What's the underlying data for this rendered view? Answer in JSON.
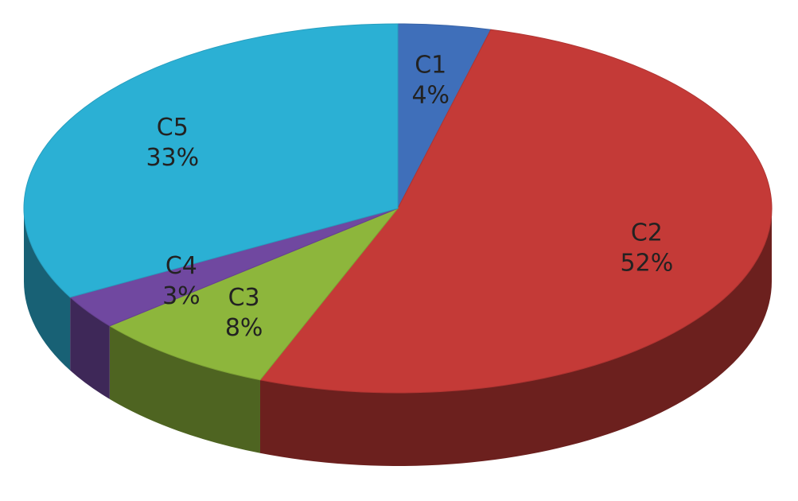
{
  "chart_data": {
    "type": "pie",
    "categories": [
      "C1",
      "C2",
      "C3",
      "C4",
      "C5"
    ],
    "values": [
      4,
      52,
      8,
      3,
      33
    ],
    "value_labels": [
      "4%",
      "52%",
      "8%",
      "3%",
      "33%"
    ],
    "colors": [
      "#3f6fba",
      "#c43a37",
      "#8db63c",
      "#7048a0",
      "#2bb0d4"
    ]
  }
}
